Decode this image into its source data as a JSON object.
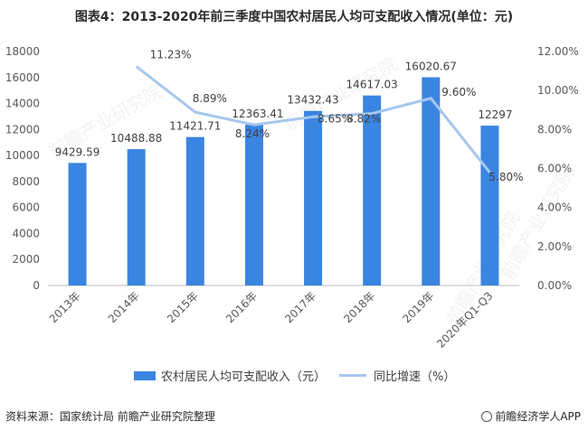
{
  "header": {
    "title": "图表4：2013-2020年前三季度中国农村居民人均可支配收入情况(单位：元)"
  },
  "chart_data": {
    "type": "bar",
    "categories": [
      "2013年",
      "2014年",
      "2015年",
      "2016年",
      "2017年",
      "2018年",
      "2019年",
      "2020年Q1-Q3"
    ],
    "series": [
      {
        "name": "农村居民人均可支配收入（元）",
        "type": "bar",
        "axis": "left",
        "color": "#3a85e1",
        "values": [
          9429.59,
          10488.88,
          11421.71,
          12363.41,
          13432.43,
          14617.03,
          16020.67,
          12297
        ],
        "labels": [
          "9429.59",
          "10488.88",
          "11421.71",
          "12363.41",
          "13432.43",
          "14617.03",
          "16020.67",
          "12297"
        ]
      },
      {
        "name": "同比增速（%）",
        "type": "line",
        "axis": "right",
        "color": "#a6c7ee",
        "values": [
          null,
          11.23,
          8.89,
          8.24,
          8.65,
          8.82,
          9.6,
          5.8
        ],
        "labels": [
          "",
          "11.23%",
          "8.89%",
          "8.24%",
          "8.65%",
          "8.82%",
          "9.60%",
          "5.80%"
        ]
      }
    ],
    "y_left": {
      "ylim": [
        0,
        18000
      ],
      "ticks": [
        "0",
        "2000",
        "4000",
        "6000",
        "8000",
        "10000",
        "12000",
        "14000",
        "16000",
        "18000"
      ]
    },
    "y_right": {
      "ylim": [
        0,
        12
      ],
      "ticks": [
        "0.00%",
        "2.00%",
        "4.00%",
        "6.00%",
        "8.00%",
        "10.00%",
        "12.00%"
      ]
    },
    "grid": false,
    "legend": "bottom"
  },
  "watermark": "前瞻产业研究院",
  "footer": {
    "source": "资料来源：国家统计局 前瞻产业研究院整理",
    "brand": "前瞻经济学人APP"
  }
}
